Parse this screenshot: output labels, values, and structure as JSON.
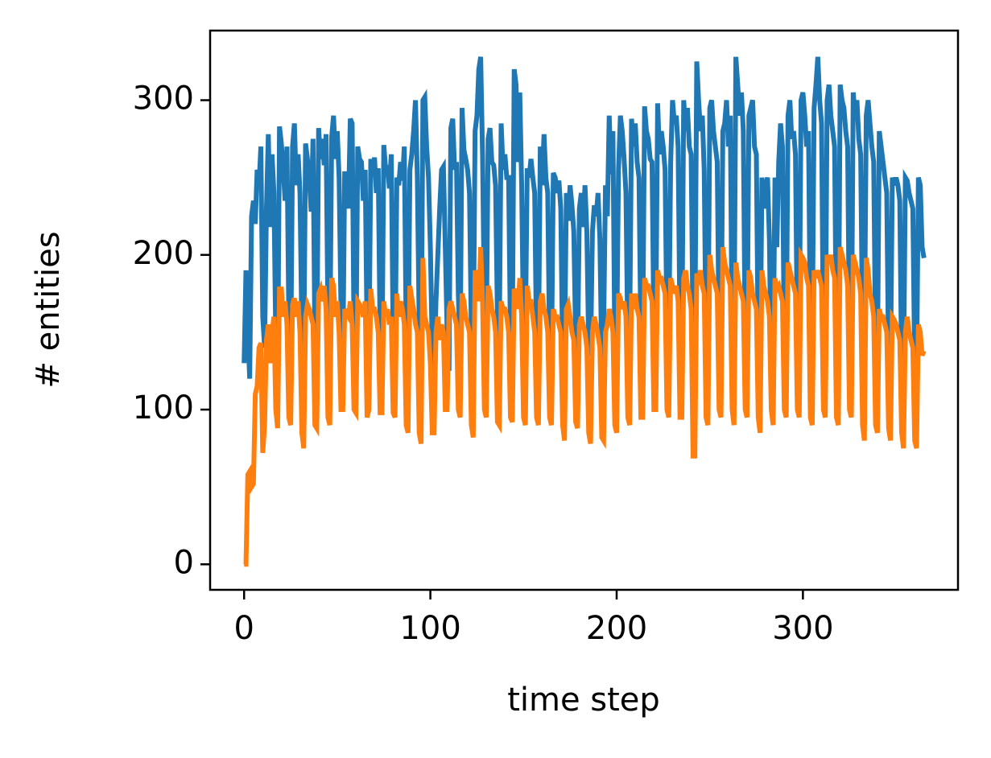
{
  "chart_data": {
    "type": "line",
    "x_label": "time step",
    "y_label": "# entities",
    "x": [
      0,
      1,
      2,
      3,
      4,
      5,
      6,
      7,
      8,
      9,
      10,
      11,
      12,
      13,
      14,
      15,
      16,
      17,
      18,
      19,
      20,
      21,
      22,
      23,
      24,
      25,
      26,
      27,
      28,
      29,
      30,
      31,
      32,
      33,
      34,
      35,
      36,
      37,
      38,
      39,
      40,
      41,
      42,
      43,
      44,
      45,
      46,
      47,
      48,
      49,
      50,
      51,
      52,
      53,
      54,
      55,
      56,
      57,
      58,
      59,
      60,
      61,
      62,
      63,
      64,
      65,
      66,
      67,
      68,
      69,
      70,
      71,
      72,
      73,
      74,
      75,
      76,
      77,
      78,
      79,
      80,
      81,
      82,
      83,
      84,
      85,
      86,
      87,
      88,
      89,
      90,
      91,
      92,
      93,
      94,
      95,
      96,
      97,
      98,
      99,
      100,
      101,
      102,
      103,
      104,
      105,
      106,
      107,
      108,
      109,
      110,
      111,
      112,
      113,
      114,
      115,
      116,
      117,
      118,
      119,
      120,
      121,
      122,
      123,
      124,
      125,
      126,
      127,
      128,
      129,
      130,
      131,
      132,
      133,
      134,
      135,
      136,
      137,
      138,
      139,
      140,
      141,
      142,
      143,
      144,
      145,
      146,
      147,
      148,
      149,
      150,
      151,
      152,
      153,
      154,
      155,
      156,
      157,
      158,
      159,
      160,
      161,
      162,
      163,
      164,
      165,
      166,
      167,
      168,
      169,
      170,
      171,
      172,
      173,
      174,
      175,
      176,
      177,
      178,
      179,
      180,
      181,
      182,
      183,
      184,
      185,
      186,
      187,
      188,
      189,
      190,
      191,
      192,
      193,
      194,
      195,
      196,
      197,
      198,
      199,
      200,
      201,
      202,
      203,
      204,
      205,
      206,
      207,
      208,
      209,
      210,
      211,
      212,
      213,
      214,
      215,
      216,
      217,
      218,
      219,
      220,
      221,
      222,
      223,
      224,
      225,
      226,
      227,
      228,
      229,
      230,
      231,
      232,
      233,
      234,
      235,
      236,
      237,
      238,
      239,
      240,
      241,
      242,
      243,
      244,
      245,
      246,
      247,
      248,
      249,
      250,
      251,
      252,
      253,
      254,
      255,
      256,
      257,
      258,
      259,
      260,
      261,
      262,
      263,
      264,
      265,
      266,
      267,
      268,
      269,
      270,
      271,
      272,
      273,
      274,
      275,
      276,
      277,
      278,
      279,
      280,
      281,
      282,
      283,
      284,
      285,
      286,
      287,
      288,
      289,
      290,
      291,
      292,
      293,
      294,
      295,
      296,
      297,
      298,
      299,
      300,
      301,
      302,
      303,
      304,
      305,
      306,
      307,
      308,
      309,
      310,
      311,
      312,
      313,
      314,
      315,
      316,
      317,
      318,
      319,
      320,
      321,
      322,
      323,
      324,
      325,
      326,
      327,
      328,
      329,
      330,
      331,
      332,
      333,
      334,
      335,
      336,
      337,
      338,
      339,
      340,
      341,
      342,
      343,
      344,
      345,
      346,
      347,
      348,
      349,
      350,
      351,
      352,
      353,
      354,
      355,
      356,
      357,
      358,
      359,
      360,
      361,
      362,
      363,
      364,
      365
    ],
    "series": [
      {
        "color": "#1f77b4",
        "values": [
          130,
          190,
          150,
          120,
          225,
          235,
          220,
          255,
          245,
          270,
          160,
          140,
          230,
          278,
          218,
          265,
          240,
          145,
          120,
          283,
          272,
          255,
          235,
          270,
          160,
          128,
          270,
          285,
          245,
          265,
          240,
          150,
          130,
          272,
          262,
          250,
          228,
          275,
          145,
          130,
          282,
          262,
          275,
          258,
          278,
          160,
          135,
          276,
          290,
          262,
          280,
          250,
          165,
          130,
          254,
          240,
          230,
          288,
          285,
          150,
          128,
          270,
          262,
          260,
          235,
          255,
          150,
          130,
          262,
          252,
          263,
          240,
          256,
          150,
          128,
          271,
          255,
          258,
          243,
          265,
          148,
          127,
          250,
          245,
          260,
          248,
          270,
          150,
          125,
          255,
          265,
          280,
          300,
          250,
          155,
          120,
          300,
          302,
          270,
          250,
          205,
          140,
          120,
          170,
          200,
          230,
          255,
          257,
          205,
          150,
          125,
          282,
          288,
          255,
          260,
          175,
          135,
          295,
          268,
          262,
          255,
          240,
          150,
          135,
          280,
          290,
          320,
          328,
          265,
          165,
          140,
          275,
          282,
          260,
          258,
          245,
          160,
          145,
          285,
          255,
          265,
          250,
          250,
          145,
          148,
          320,
          310,
          260,
          305,
          245,
          150,
          148,
          256,
          250,
          262,
          250,
          240,
          140,
          135,
          270,
          245,
          278,
          250,
          240,
          140,
          130,
          253,
          250,
          240,
          248,
          230,
          135,
          130,
          240,
          222,
          245,
          232,
          215,
          145,
          135,
          230,
          240,
          218,
          245,
          215,
          140,
          135,
          215,
          232,
          225,
          240,
          210,
          130,
          150,
          245,
          225,
          290,
          252,
          280,
          140,
          140,
          255,
          290,
          280,
          262,
          240,
          140,
          150,
          288,
          270,
          285,
          260,
          250,
          145,
          148,
          296,
          280,
          275,
          262,
          260,
          150,
          150,
          298,
          265,
          280,
          270,
          255,
          150,
          145,
          260,
          300,
          285,
          290,
          270,
          150,
          140,
          300,
          280,
          295,
          270,
          265,
          148,
          145,
          325,
          300,
          280,
          290,
          255,
          140,
          130,
          295,
          300,
          280,
          270,
          260,
          145,
          135,
          280,
          285,
          300,
          270,
          290,
          145,
          140,
          328,
          310,
          290,
          305,
          280,
          145,
          135,
          290,
          295,
          300,
          270,
          265,
          140,
          125,
          250,
          230,
          245,
          250,
          210,
          120,
          130,
          250,
          205,
          260,
          285,
          270,
          140,
          130,
          290,
          300,
          275,
          280,
          265,
          145,
          135,
          300,
          305,
          290,
          270,
          280,
          150,
          140,
          295,
          310,
          328,
          300,
          285,
          140,
          130,
          300,
          310,
          290,
          280,
          270,
          140,
          125,
          310,
          300,
          295,
          280,
          270,
          145,
          130,
          305,
          290,
          300,
          275,
          265,
          150,
          140,
          290,
          300,
          285,
          270,
          260,
          140,
          130,
          280,
          270,
          260,
          250,
          240,
          130,
          125,
          250,
          245,
          250,
          245,
          235,
          125,
          120,
          250,
          248,
          240,
          235,
          230,
          130,
          120,
          250,
          245,
          205,
          198
        ]
      },
      {
        "color": "#ff7f0e",
        "values": [
          0,
          0,
          58,
          60,
          50,
          52,
          110,
          115,
          140,
          143,
          72,
          90,
          145,
          155,
          130,
          150,
          160,
          100,
          88,
          178,
          178,
          160,
          170,
          155,
          95,
          90,
          168,
          172,
          160,
          170,
          150,
          85,
          75,
          160,
          168,
          165,
          160,
          155,
          90,
          88,
          175,
          178,
          170,
          180,
          165,
          95,
          90,
          185,
          180,
          160,
          170,
          150,
          100,
          100,
          165,
          162,
          160,
          170,
          155,
          100,
          98,
          170,
          168,
          165,
          160,
          170,
          95,
          100,
          178,
          165,
          165,
          160,
          150,
          98,
          98,
          170,
          160,
          165,
          155,
          160,
          98,
          95,
          175,
          160,
          170,
          165,
          155,
          90,
          85,
          180,
          172,
          165,
          155,
          150,
          85,
          78,
          198,
          160,
          155,
          150,
          130,
          85,
          85,
          150,
          160,
          145,
          155,
          150,
          100,
          100,
          165,
          170,
          165,
          160,
          155,
          100,
          95,
          175,
          170,
          160,
          155,
          150,
          90,
          82,
          190,
          185,
          170,
          205,
          170,
          100,
          95,
          180,
          175,
          165,
          160,
          150,
          92,
          90,
          170,
          165,
          165,
          160,
          150,
          95,
          92,
          178,
          175,
          165,
          185,
          160,
          95,
          90,
          180,
          170,
          170,
          160,
          150,
          95,
          90,
          170,
          175,
          165,
          160,
          150,
          95,
          90,
          165,
          160,
          160,
          155,
          150,
          90,
          80,
          165,
          168,
          160,
          150,
          145,
          92,
          88,
          155,
          160,
          155,
          150,
          140,
          85,
          78,
          150,
          160,
          155,
          148,
          140,
          82,
          80,
          150,
          155,
          165,
          160,
          150,
          90,
          85,
          175,
          172,
          165,
          170,
          160,
          95,
          90,
          175,
          165,
          175,
          165,
          160,
          95,
          95,
          185,
          180,
          180,
          175,
          170,
          100,
          100,
          190,
          185,
          185,
          180,
          175,
          100,
          95,
          185,
          180,
          175,
          180,
          170,
          95,
          95,
          185,
          190,
          180,
          175,
          165,
          70,
          70,
          188,
          185,
          190,
          180,
          175,
          95,
          90,
          200,
          190,
          185,
          180,
          175,
          100,
          95,
          205,
          195,
          190,
          185,
          180,
          100,
          90,
          195,
          185,
          180,
          175,
          170,
          100,
          95,
          190,
          185,
          175,
          170,
          165,
          95,
          85,
          190,
          180,
          175,
          170,
          160,
          100,
          90,
          185,
          178,
          180,
          175,
          170,
          100,
          95,
          195,
          190,
          185,
          180,
          175,
          100,
          95,
          200,
          198,
          195,
          185,
          180,
          95,
          90,
          190,
          185,
          190,
          185,
          180,
          100,
          95,
          200,
          195,
          200,
          190,
          185,
          95,
          90,
          205,
          200,
          195,
          190,
          180,
          100,
          95,
          200,
          195,
          190,
          185,
          175,
          90,
          80,
          198,
          190,
          175,
          170,
          160,
          90,
          85,
          165,
          160,
          160,
          155,
          150,
          88,
          80,
          160,
          158,
          155,
          150,
          145,
          85,
          75,
          150,
          160,
          150,
          145,
          140,
          80,
          75,
          155,
          150,
          135,
          138
        ]
      }
    ],
    "xlim": [
      -18.25,
      383.25
    ],
    "ylim": [
      -16.5,
      345
    ],
    "xticks": [
      0,
      100,
      200,
      300
    ],
    "yticks": [
      0,
      100,
      200,
      300
    ]
  }
}
